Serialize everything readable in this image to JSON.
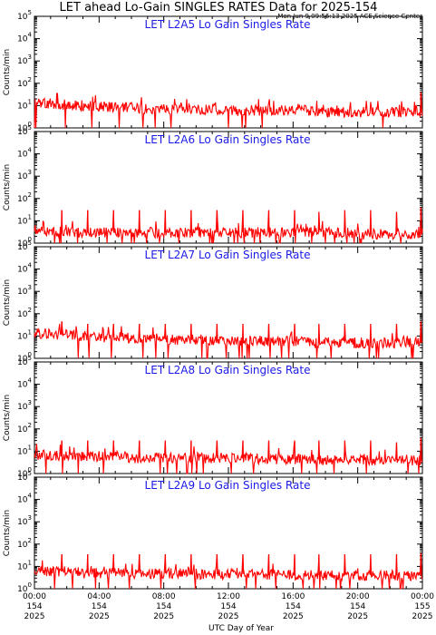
{
  "title": "LET ahead Lo-Gain SINGLES RATES Data for 2025-154",
  "timestamp": "Mon Jun  9 09:56:13 2025 ACE Science Center",
  "xlabel": "UTC Day of Year",
  "ylabel": "Counts/min",
  "x_ticks": [
    {
      "time": "00:00",
      "doy": "154",
      "year": "2025"
    },
    {
      "time": "04:00",
      "doy": "154",
      "year": "2025"
    },
    {
      "time": "08:00",
      "doy": "154",
      "year": "2025"
    },
    {
      "time": "12:00",
      "doy": "154",
      "year": "2025"
    },
    {
      "time": "16:00",
      "doy": "154",
      "year": "2025"
    },
    {
      "time": "20:00",
      "doy": "154",
      "year": "2025"
    },
    {
      "time": "00:00",
      "doy": "155",
      "year": "2025"
    }
  ],
  "colors": {
    "line": "#ff0000",
    "panel_title": "#1a1ae6",
    "axis": "#000000"
  },
  "chart_data": [
    {
      "type": "line",
      "title": "LET L2A5 Lo Gain Singles Rate",
      "xlabel": "",
      "ylabel": "Counts/min",
      "x_unit": "hours UTC",
      "xlim": [
        0,
        24
      ],
      "ylim": [
        1,
        100000
      ],
      "yscale": "log",
      "y_tick_labels": [
        "10^0",
        "10^1",
        "10^2",
        "10^3",
        "10^4",
        "10^5"
      ],
      "baseline_counts_per_min": [
        14,
        12,
        11,
        10,
        9,
        8,
        8,
        7,
        7,
        7,
        7,
        7,
        6,
        6,
        6,
        6,
        6,
        6,
        5,
        5,
        5,
        5,
        5,
        5,
        5
      ],
      "baseline_hours": [
        0,
        1,
        2,
        3,
        4,
        5,
        6,
        7,
        8,
        9,
        10,
        11,
        12,
        13,
        14,
        15,
        16,
        17,
        18,
        19,
        20,
        21,
        22,
        23,
        24
      ],
      "spikes": [
        {
          "hour": 1.4,
          "value": 35
        },
        {
          "hour": 23.9,
          "value": 40
        }
      ]
    },
    {
      "type": "line",
      "title": "LET L2A6 Lo Gain Singles Rate",
      "xlabel": "",
      "ylabel": "Counts/min",
      "x_unit": "hours UTC",
      "xlim": [
        0,
        24
      ],
      "ylim": [
        1,
        100000
      ],
      "yscale": "log",
      "y_tick_labels": [
        "10^0",
        "10^1",
        "10^2",
        "10^3",
        "10^4",
        "10^5"
      ],
      "baseline_counts_per_min": [
        4,
        3.5,
        3,
        3,
        3,
        3,
        3,
        3,
        3,
        3,
        3,
        3,
        3,
        3,
        3,
        3,
        3,
        3,
        3,
        3,
        2.5,
        2.5,
        2.5,
        2.5,
        2.5
      ],
      "baseline_hours": [
        0,
        1,
        2,
        3,
        4,
        5,
        6,
        7,
        8,
        9,
        10,
        11,
        12,
        13,
        14,
        15,
        16,
        17,
        18,
        19,
        20,
        21,
        22,
        23,
        24
      ],
      "spikes": [
        {
          "hour": 1.7,
          "value": 30
        },
        {
          "hour": 3.3,
          "value": 30
        },
        {
          "hour": 4.9,
          "value": 30
        },
        {
          "hour": 6.5,
          "value": 30
        },
        {
          "hour": 8.1,
          "value": 30
        },
        {
          "hour": 9.7,
          "value": 30
        },
        {
          "hour": 11.3,
          "value": 30
        },
        {
          "hour": 12.9,
          "value": 30
        },
        {
          "hour": 14.5,
          "value": 30
        },
        {
          "hour": 16.1,
          "value": 30
        },
        {
          "hour": 17.6,
          "value": 25
        },
        {
          "hour": 19.2,
          "value": 30
        },
        {
          "hour": 20.8,
          "value": 30
        },
        {
          "hour": 22.4,
          "value": 25
        },
        {
          "hour": 23.9,
          "value": 40
        }
      ]
    },
    {
      "type": "line",
      "title": "LET L2A7 Lo Gain Singles Rate",
      "xlabel": "",
      "ylabel": "Counts/min",
      "x_unit": "hours UTC",
      "xlim": [
        0,
        24
      ],
      "ylim": [
        1,
        100000
      ],
      "yscale": "log",
      "y_tick_labels": [
        "10^0",
        "10^1",
        "10^2",
        "10^3",
        "10^4",
        "10^5"
      ],
      "baseline_counts_per_min": [
        14,
        12,
        11,
        10,
        9,
        9,
        8,
        8,
        7,
        7,
        7,
        6,
        6,
        6,
        6,
        6,
        6,
        5,
        5,
        5,
        5,
        5,
        5,
        5,
        5
      ],
      "baseline_hours": [
        0,
        1,
        2,
        3,
        4,
        5,
        6,
        7,
        8,
        9,
        10,
        11,
        12,
        13,
        14,
        15,
        16,
        17,
        18,
        19,
        20,
        21,
        22,
        23,
        24
      ],
      "spikes": [
        {
          "hour": 1.7,
          "value": 45
        },
        {
          "hour": 3.3,
          "value": 35
        },
        {
          "hour": 4.9,
          "value": 35
        },
        {
          "hour": 6.5,
          "value": 35
        },
        {
          "hour": 8.1,
          "value": 35
        },
        {
          "hour": 9.7,
          "value": 35
        },
        {
          "hour": 11.3,
          "value": 35
        },
        {
          "hour": 12.9,
          "value": 35
        },
        {
          "hour": 14.5,
          "value": 35
        },
        {
          "hour": 16.1,
          "value": 35
        },
        {
          "hour": 17.6,
          "value": 35
        },
        {
          "hour": 19.2,
          "value": 35
        },
        {
          "hour": 20.8,
          "value": 35
        },
        {
          "hour": 22.4,
          "value": 35
        },
        {
          "hour": 23.9,
          "value": 45
        }
      ]
    },
    {
      "type": "line",
      "title": "LET L2A8 Lo Gain Singles Rate",
      "xlabel": "",
      "ylabel": "Counts/min",
      "x_unit": "hours UTC",
      "xlim": [
        0,
        24
      ],
      "ylim": [
        1,
        100000
      ],
      "yscale": "log",
      "y_tick_labels": [
        "10^0",
        "10^1",
        "10^2",
        "10^3",
        "10^4",
        "10^5"
      ],
      "baseline_counts_per_min": [
        7,
        7,
        6,
        6,
        6,
        6,
        5,
        5,
        5,
        5,
        5,
        5,
        5,
        5,
        4.5,
        4.5,
        4.5,
        4.5,
        4,
        4,
        4,
        4,
        4,
        4,
        4
      ],
      "baseline_hours": [
        0,
        1,
        2,
        3,
        4,
        5,
        6,
        7,
        8,
        9,
        10,
        11,
        12,
        13,
        14,
        15,
        16,
        17,
        18,
        19,
        20,
        21,
        22,
        23,
        24
      ],
      "spikes": [
        {
          "hour": 1.7,
          "value": 30
        },
        {
          "hour": 3.3,
          "value": 30
        },
        {
          "hour": 4.9,
          "value": 30
        },
        {
          "hour": 6.5,
          "value": 30
        },
        {
          "hour": 8.1,
          "value": 30
        },
        {
          "hour": 9.7,
          "value": 30
        },
        {
          "hour": 11.3,
          "value": 30
        },
        {
          "hour": 12.9,
          "value": 30
        },
        {
          "hour": 14.5,
          "value": 30
        },
        {
          "hour": 16.1,
          "value": 30
        },
        {
          "hour": 17.6,
          "value": 30
        },
        {
          "hour": 19.2,
          "value": 30
        },
        {
          "hour": 20.8,
          "value": 30
        },
        {
          "hour": 22.4,
          "value": 25
        },
        {
          "hour": 23.9,
          "value": 40
        }
      ]
    },
    {
      "type": "line",
      "title": "LET L2A9 Lo Gain Singles Rate",
      "xlabel": "UTC Day of Year",
      "ylabel": "Counts/min",
      "x_unit": "hours UTC",
      "xlim": [
        0,
        24
      ],
      "ylim": [
        1,
        100000
      ],
      "yscale": "log",
      "y_tick_labels": [
        "10^0",
        "10^1",
        "10^2",
        "10^3",
        "10^4",
        "10^5"
      ],
      "baseline_counts_per_min": [
        6,
        6,
        6,
        5,
        5,
        5,
        5,
        5,
        5,
        5,
        4.5,
        4.5,
        4.5,
        4.5,
        4.5,
        4,
        4,
        4,
        4,
        4,
        4,
        4,
        4,
        4,
        4
      ],
      "baseline_hours": [
        0,
        1,
        2,
        3,
        4,
        5,
        6,
        7,
        8,
        9,
        10,
        11,
        12,
        13,
        14,
        15,
        16,
        17,
        18,
        19,
        20,
        21,
        22,
        23,
        24
      ],
      "spikes": [
        {
          "hour": 1.7,
          "value": 35
        },
        {
          "hour": 3.3,
          "value": 35
        },
        {
          "hour": 4.9,
          "value": 35
        },
        {
          "hour": 6.5,
          "value": 35
        },
        {
          "hour": 8.1,
          "value": 35
        },
        {
          "hour": 9.7,
          "value": 35
        },
        {
          "hour": 11.3,
          "value": 35
        },
        {
          "hour": 12.9,
          "value": 35
        },
        {
          "hour": 14.5,
          "value": 35
        },
        {
          "hour": 16.1,
          "value": 35
        },
        {
          "hour": 17.6,
          "value": 35
        },
        {
          "hour": 19.2,
          "value": 35
        },
        {
          "hour": 20.8,
          "value": 35
        },
        {
          "hour": 22.4,
          "value": 35
        },
        {
          "hour": 23.9,
          "value": 40
        }
      ]
    }
  ]
}
